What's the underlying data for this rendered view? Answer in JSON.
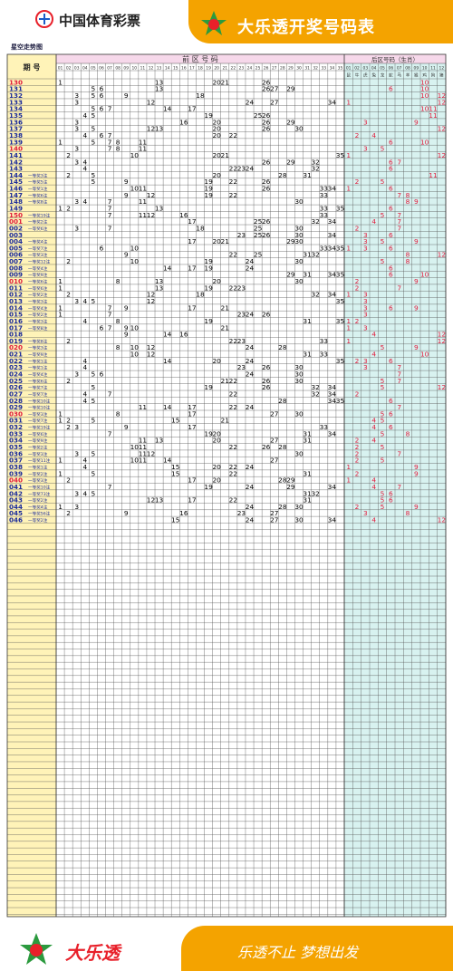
{
  "header": {
    "org_name": "中国体育彩票",
    "chart_title": "大乐透开奖号码表",
    "subtitle": "星空走势图"
  },
  "table": {
    "period_header": "期 号",
    "front_header": "前 区 号 码",
    "back_header": "后区号码（生肖）",
    "front_numbers": [
      "01",
      "02",
      "03",
      "04",
      "05",
      "06",
      "07",
      "08",
      "09",
      "10",
      "11",
      "12",
      "13",
      "14",
      "15",
      "16",
      "17",
      "18",
      "19",
      "20",
      "21",
      "22",
      "23",
      "24",
      "25",
      "26",
      "27",
      "28",
      "29",
      "30",
      "31",
      "32",
      "33",
      "34",
      "35"
    ],
    "back_numbers": [
      "01",
      "02",
      "03",
      "04",
      "05",
      "06",
      "07",
      "08",
      "09",
      "10",
      "11",
      "12"
    ],
    "zodiac": [
      "鼠",
      "牛",
      "虎",
      "兔",
      "龙",
      "蛇",
      "马",
      "羊",
      "猴",
      "鸡",
      "狗",
      "猪"
    ],
    "rows": [
      {
        "p": "130",
        "s": "",
        "red": true,
        "f": [
          1,
          13,
          20,
          21,
          26
        ],
        "b": [
          10
        ]
      },
      {
        "p": "131",
        "s": "",
        "red": false,
        "f": [
          5,
          6,
          13,
          26,
          27,
          29
        ],
        "b": [
          6,
          10
        ]
      },
      {
        "p": "132",
        "s": "",
        "red": false,
        "f": [
          3,
          5,
          6,
          9,
          18
        ],
        "b": [
          10,
          12
        ]
      },
      {
        "p": "133",
        "s": "",
        "red": false,
        "f": [
          3,
          12,
          24,
          27,
          34
        ],
        "b": [
          1,
          12
        ]
      },
      {
        "p": "134",
        "s": "",
        "red": false,
        "f": [
          5,
          6,
          7,
          14,
          17
        ],
        "b": [
          10,
          11
        ]
      },
      {
        "p": "135",
        "s": "",
        "red": false,
        "f": [
          4,
          5,
          19,
          25,
          26
        ],
        "b": [
          11
        ]
      },
      {
        "p": "136",
        "s": "",
        "red": false,
        "f": [
          3,
          16,
          20,
          26,
          29
        ],
        "b": [
          3,
          9
        ]
      },
      {
        "p": "137",
        "s": "",
        "red": false,
        "f": [
          3,
          5,
          12,
          13,
          20,
          26,
          30
        ],
        "b": [
          12
        ]
      },
      {
        "p": "138",
        "s": "",
        "red": false,
        "f": [
          4,
          6,
          7,
          20,
          22
        ],
        "b": [
          2,
          4
        ]
      },
      {
        "p": "139",
        "s": "",
        "red": false,
        "f": [
          1,
          5,
          7,
          8,
          11
        ],
        "b": [
          6,
          10
        ]
      },
      {
        "p": "140",
        "s": "",
        "red": true,
        "f": [
          3,
          7,
          8,
          11
        ],
        "b": [
          3,
          5
        ]
      },
      {
        "p": "141",
        "s": "",
        "red": false,
        "f": [
          2,
          10,
          20,
          21,
          35
        ],
        "b": [
          1,
          12
        ]
      },
      {
        "p": "142",
        "s": "",
        "red": false,
        "f": [
          3,
          4,
          26,
          29,
          32
        ],
        "b": [
          6,
          7
        ]
      },
      {
        "p": "143",
        "s": "",
        "red": false,
        "f": [
          4,
          22,
          23,
          24,
          32
        ],
        "b": [
          6
        ]
      },
      {
        "p": "144",
        "s": "一等奖3注",
        "red": false,
        "f": [
          2,
          5,
          20,
          28,
          31
        ],
        "b": [
          11
        ]
      },
      {
        "p": "145",
        "s": "一等奖5注",
        "red": false,
        "f": [
          5,
          9,
          19,
          22,
          26
        ],
        "b": [
          2,
          5
        ]
      },
      {
        "p": "146",
        "s": "一等奖1注",
        "red": false,
        "f": [
          10,
          11,
          19,
          26,
          33,
          34
        ],
        "b": [
          1,
          6
        ]
      },
      {
        "p": "147",
        "s": "一等奖6注",
        "red": false,
        "f": [
          9,
          12,
          19,
          22,
          33
        ],
        "b": [
          7,
          8
        ]
      },
      {
        "p": "148",
        "s": "一等奖8注",
        "red": false,
        "f": [
          3,
          4,
          7,
          11,
          30
        ],
        "b": [
          8,
          9
        ]
      },
      {
        "p": "149",
        "s": "",
        "red": false,
        "f": [
          1,
          2,
          7,
          13,
          33,
          35
        ],
        "b": [
          6
        ]
      },
      {
        "p": "150",
        "s": "一等奖19注",
        "red": true,
        "f": [
          7,
          11,
          12,
          16,
          33
        ],
        "b": [
          5,
          7
        ]
      },
      {
        "p": "001",
        "s": "一等奖2注",
        "red": true,
        "f": [
          17,
          25,
          26,
          32,
          34
        ],
        "b": [
          4,
          7
        ]
      },
      {
        "p": "002",
        "s": "一等奖6注",
        "red": false,
        "f": [
          3,
          7,
          18,
          25,
          30
        ],
        "b": [
          2,
          7
        ]
      },
      {
        "p": "003",
        "s": "",
        "red": false,
        "f": [
          23,
          25,
          26,
          30,
          34
        ],
        "b": [
          3,
          6
        ]
      },
      {
        "p": "004",
        "s": "一等奖4注",
        "red": false,
        "f": [
          17,
          20,
          21,
          29,
          30
        ],
        "b": [
          3,
          5,
          9
        ]
      },
      {
        "p": "005",
        "s": "一等奖7注",
        "red": false,
        "f": [
          6,
          10,
          33,
          34,
          35
        ],
        "b": [
          1,
          3,
          6
        ]
      },
      {
        "p": "006",
        "s": "一等奖3注",
        "red": false,
        "f": [
          9,
          22,
          25,
          31,
          32
        ],
        "b": [
          8,
          12
        ]
      },
      {
        "p": "007",
        "s": "一等奖12注",
        "red": false,
        "f": [
          2,
          10,
          19,
          24,
          30
        ],
        "b": [
          5,
          8
        ]
      },
      {
        "p": "008",
        "s": "一等奖4注",
        "red": false,
        "f": [
          14,
          17,
          19,
          24
        ],
        "b": [
          6
        ]
      },
      {
        "p": "009",
        "s": "一等奖9注",
        "red": false,
        "f": [
          29,
          31,
          34,
          35
        ],
        "b": [
          6,
          10
        ]
      },
      {
        "p": "010",
        "s": "一等奖6注",
        "red": true,
        "f": [
          1,
          8,
          13,
          20,
          30
        ],
        "b": [
          2,
          9
        ]
      },
      {
        "p": "011",
        "s": "一等奖6注",
        "red": false,
        "f": [
          1,
          13,
          19,
          22,
          23
        ],
        "b": [
          2,
          7
        ]
      },
      {
        "p": "012",
        "s": "一等奖2注",
        "red": false,
        "f": [
          2,
          12,
          18,
          32,
          34
        ],
        "b": [
          1,
          3
        ]
      },
      {
        "p": "013",
        "s": "一等奖3注",
        "red": false,
        "f": [
          3,
          4,
          5,
          12,
          35
        ],
        "b": [
          3
        ]
      },
      {
        "p": "014",
        "s": "一等奖4注",
        "red": false,
        "f": [
          1,
          7,
          9,
          17,
          21
        ],
        "b": [
          3,
          6,
          9
        ]
      },
      {
        "p": "015",
        "s": "一等奖2注",
        "red": false,
        "f": [
          1,
          7,
          23,
          24,
          26
        ],
        "b": [
          3
        ]
      },
      {
        "p": "016",
        "s": "一等奖3注",
        "red": false,
        "f": [
          4,
          8,
          19,
          31,
          35
        ],
        "b": [
          1,
          2
        ]
      },
      {
        "p": "017",
        "s": "一等奖8注",
        "red": false,
        "f": [
          6,
          7,
          9,
          10,
          21
        ],
        "b": [
          1,
          3
        ]
      },
      {
        "p": "018",
        "s": "",
        "red": false,
        "f": [
          9,
          14,
          16
        ],
        "b": [
          4,
          12
        ]
      },
      {
        "p": "019",
        "s": "一等奖8注",
        "red": false,
        "f": [
          2,
          22,
          23,
          33
        ],
        "b": [
          1,
          12
        ]
      },
      {
        "p": "020",
        "s": "一等奖3注",
        "red": true,
        "f": [
          8,
          10,
          12,
          24,
          28
        ],
        "b": [
          5,
          9
        ]
      },
      {
        "p": "021",
        "s": "一等奖9注",
        "red": false,
        "f": [
          10,
          12,
          31,
          33
        ],
        "b": [
          4,
          10
        ]
      },
      {
        "p": "022",
        "s": "一等奖1注",
        "red": false,
        "f": [
          4,
          14,
          20,
          24,
          35
        ],
        "b": [
          2,
          3,
          6
        ]
      },
      {
        "p": "023",
        "s": "一等奖1注",
        "red": false,
        "f": [
          4,
          23,
          26,
          30
        ],
        "b": [
          3,
          7
        ]
      },
      {
        "p": "024",
        "s": "一等奖4注",
        "red": false,
        "f": [
          3,
          5,
          6,
          24,
          30
        ],
        "b": [
          7
        ]
      },
      {
        "p": "025",
        "s": "一等奖6注",
        "red": false,
        "f": [
          2,
          21,
          22,
          26,
          30
        ],
        "b": [
          5,
          7
        ]
      },
      {
        "p": "026",
        "s": "一等奖7注",
        "red": false,
        "f": [
          5,
          19,
          26,
          32,
          34
        ],
        "b": [
          5,
          12
        ]
      },
      {
        "p": "027",
        "s": "一等奖7注",
        "red": false,
        "f": [
          4,
          7,
          22,
          32,
          34
        ],
        "b": [
          2
        ]
      },
      {
        "p": "028",
        "s": "一等奖10注",
        "red": false,
        "f": [
          4,
          5,
          28,
          34,
          35
        ],
        "b": [
          6
        ]
      },
      {
        "p": "029",
        "s": "一等奖10注",
        "red": false,
        "f": [
          11,
          14,
          17,
          22,
          24
        ],
        "b": [
          7
        ]
      },
      {
        "p": "030",
        "s": "一等奖3注",
        "red": true,
        "f": [
          1,
          8,
          17,
          27,
          30
        ],
        "b": [
          5,
          6
        ]
      },
      {
        "p": "031",
        "s": "一等奖7注",
        "red": false,
        "f": [
          1,
          2,
          5,
          15,
          21
        ],
        "b": [
          4,
          5
        ]
      },
      {
        "p": "032",
        "s": "一等奖19注",
        "red": false,
        "f": [
          2,
          3,
          9,
          17,
          33
        ],
        "b": [
          4,
          6
        ]
      },
      {
        "p": "033",
        "s": "一等奖6注",
        "red": false,
        "f": [
          7,
          19,
          20,
          31,
          34
        ],
        "b": [
          5,
          8
        ]
      },
      {
        "p": "034",
        "s": "一等奖9注",
        "red": false,
        "f": [
          11,
          13,
          20,
          27,
          31
        ],
        "b": [
          2,
          4
        ]
      },
      {
        "p": "035",
        "s": "一等奖2注",
        "red": false,
        "f": [
          10,
          11,
          22,
          26,
          28
        ],
        "b": [
          2,
          5
        ]
      },
      {
        "p": "036",
        "s": "一等奖3注",
        "red": false,
        "f": [
          3,
          5,
          11,
          12,
          30
        ],
        "b": [
          2,
          7
        ]
      },
      {
        "p": "037",
        "s": "一等奖11注",
        "red": false,
        "f": [
          1,
          4,
          10,
          11,
          14,
          27
        ],
        "b": [
          2,
          5
        ]
      },
      {
        "p": "038",
        "s": "一等奖1注",
        "red": false,
        "f": [
          4,
          15,
          20,
          22,
          24
        ],
        "b": [
          1,
          9
        ]
      },
      {
        "p": "039",
        "s": "一等奖2注",
        "red": false,
        "f": [
          1,
          5,
          15,
          22,
          31
        ],
        "b": [
          2,
          9
        ]
      },
      {
        "p": "040",
        "s": "一等奖3注",
        "red": true,
        "f": [
          2,
          17,
          20,
          28,
          29
        ],
        "b": [
          1,
          4
        ]
      },
      {
        "p": "041",
        "s": "一等奖10注",
        "red": false,
        "f": [
          7,
          19,
          24,
          29,
          34
        ],
        "b": [
          4,
          7
        ]
      },
      {
        "p": "042",
        "s": "一等奖73注",
        "red": false,
        "f": [
          3,
          4,
          5,
          31,
          32
        ],
        "b": [
          5,
          6
        ]
      },
      {
        "p": "043",
        "s": "一等奖2注",
        "red": false,
        "f": [
          12,
          13,
          17,
          22,
          31
        ],
        "b": [
          5,
          6
        ]
      },
      {
        "p": "044",
        "s": "一等奖4注",
        "red": false,
        "f": [
          1,
          3,
          24,
          28,
          30
        ],
        "b": [
          2,
          5,
          9
        ]
      },
      {
        "p": "045",
        "s": "一等奖56注",
        "red": false,
        "f": [
          2,
          9,
          16,
          23,
          27
        ],
        "b": [
          3,
          8
        ]
      },
      {
        "p": "046",
        "s": "一等奖2注",
        "red": false,
        "f": [
          15,
          24,
          27,
          30,
          34
        ],
        "b": [
          4,
          12
        ]
      }
    ]
  },
  "footer": {
    "brand": "大乐透",
    "slogan": "乐透不止 梦想出发"
  },
  "colors": {
    "accent": "#f4a300",
    "period_column_bg": "#fff3b8",
    "front_area_bg": "#ffffff",
    "back_area_bg": "#d8f2f0",
    "header_row_bg": "#f6d8ea",
    "red_text": "#e01c3c",
    "grid_line": "#555555"
  }
}
